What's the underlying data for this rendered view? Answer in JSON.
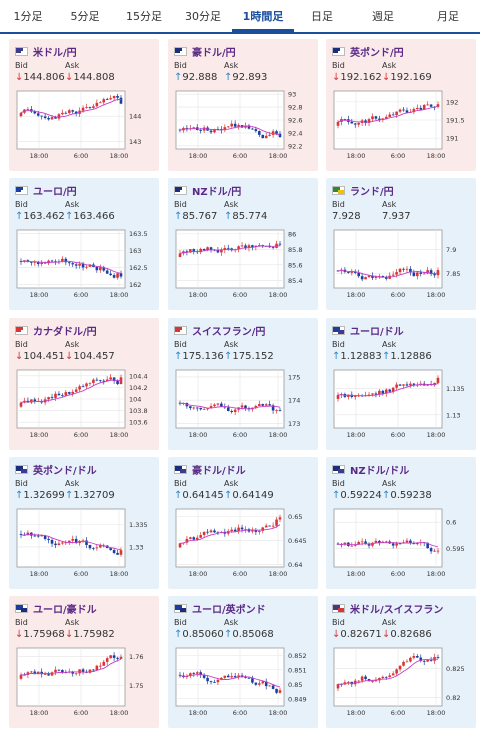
{
  "tabs": [
    {
      "label": "1分足",
      "active": false
    },
    {
      "label": "5分足",
      "active": false
    },
    {
      "label": "15分足",
      "active": false
    },
    {
      "label": "30分足",
      "active": false
    },
    {
      "label": "1時間足",
      "active": true
    },
    {
      "label": "日足",
      "active": false
    },
    {
      "label": "週足",
      "active": false
    },
    {
      "label": "月足",
      "active": false
    }
  ],
  "labels": {
    "bid": "Bid",
    "ask": "Ask"
  },
  "colors": {
    "up": "#2a86c8",
    "down": "#d83636",
    "candle_up": "#d83636",
    "candle_down": "#1a3fa0",
    "ma": "#c63fc6",
    "pink_bg": "#fbeaea",
    "blue_bg": "#e6f1fa",
    "pair_name": "#5b2a86"
  },
  "cards": [
    {
      "pair": "米ドル/円",
      "flag": [
        "#3c3b8e",
        "#ffffff"
      ],
      "bg": "pink",
      "bid_dir": "down",
      "bid": "144.806",
      "ask_dir": "down",
      "ask": "144.808",
      "chart": {
        "x_ticks": [
          "18:00",
          "6:00",
          "18:00"
        ],
        "y_ticks": [
          "144",
          "143"
        ],
        "y_range": [
          142.7,
          145.0
        ]
      }
    },
    {
      "pair": "豪ドル/円",
      "flag": [
        "#1a2e7a",
        "#ffffff"
      ],
      "bg": "pink",
      "bid_dir": "up",
      "bid": "92.888",
      "ask_dir": "up",
      "ask": "92.893",
      "chart": {
        "x_ticks": [
          "18:00",
          "6:00",
          "18:00"
        ],
        "y_ticks": [
          "93",
          "92.8",
          "92.6",
          "92.4",
          "92.2"
        ],
        "y_range": [
          92.15,
          93.05
        ]
      }
    },
    {
      "pair": "英ポンド/円",
      "flag": [
        "#1a2e7a",
        "#ffffff"
      ],
      "bg": "pink",
      "bid_dir": "down",
      "bid": "192.162",
      "ask_dir": "down",
      "ask": "192.169",
      "chart": {
        "x_ticks": [
          "18:00",
          "6:00",
          "18:00"
        ],
        "y_ticks": [
          "192",
          "191.5",
          "191"
        ],
        "y_range": [
          190.7,
          192.3
        ]
      }
    },
    {
      "pair": "ユーロ/円",
      "flag": [
        "#1a3fa0",
        "#ffffff"
      ],
      "bg": "blue",
      "bid_dir": "up",
      "bid": "163.462",
      "ask_dir": "up",
      "ask": "163.466",
      "chart": {
        "x_ticks": [
          "18:00",
          "6:00",
          "18:00"
        ],
        "y_ticks": [
          "163.5",
          "163",
          "162.5",
          "162"
        ],
        "y_range": [
          161.9,
          163.6
        ]
      }
    },
    {
      "pair": "NZドル/円",
      "flag": [
        "#1a2e7a",
        "#ffffff"
      ],
      "bg": "blue",
      "bid_dir": "up",
      "bid": "85.767",
      "ask_dir": "up",
      "ask": "85.774",
      "chart": {
        "x_ticks": [
          "18:00",
          "6:00",
          "18:00"
        ],
        "y_ticks": [
          "86",
          "85.8",
          "85.6",
          "85.4"
        ],
        "y_range": [
          85.3,
          86.05
        ]
      }
    },
    {
      "pair": "ランド/円",
      "flag": [
        "#2a8a3a",
        "#f2c200"
      ],
      "bg": "blue",
      "bid_dir": "none",
      "bid": "7.928",
      "ask_dir": "none",
      "ask": "7.937",
      "chart": {
        "x_ticks": [
          "18:00",
          "6:00",
          "18:00"
        ],
        "y_ticks": [
          "7.9",
          "7.85"
        ],
        "y_range": [
          7.82,
          7.94
        ]
      }
    },
    {
      "pair": "カナダドル/円",
      "flag": [
        "#d83636",
        "#ffffff"
      ],
      "bg": "pink",
      "bid_dir": "down",
      "bid": "104.451",
      "ask_dir": "down",
      "ask": "104.457",
      "chart": {
        "x_ticks": [
          "18:00",
          "6:00",
          "18:00"
        ],
        "y_ticks": [
          "104.4",
          "104.2",
          "104",
          "103.8",
          "103.6"
        ],
        "y_range": [
          103.5,
          104.5
        ]
      }
    },
    {
      "pair": "スイスフラン/円",
      "flag": [
        "#d83636",
        "#ffffff"
      ],
      "bg": "blue",
      "bid_dir": "up",
      "bid": "175.136",
      "ask_dir": "up",
      "ask": "175.152",
      "chart": {
        "x_ticks": [
          "18:00",
          "6:00",
          "18:00"
        ],
        "y_ticks": [
          "175",
          "174",
          "173"
        ],
        "y_range": [
          172.8,
          175.3
        ]
      }
    },
    {
      "pair": "ユーロ/ドル",
      "flag": [
        "#1a3fa0",
        "#3c3b8e"
      ],
      "bg": "blue",
      "bid_dir": "up",
      "bid": "1.12883",
      "ask_dir": "up",
      "ask": "1.12886",
      "chart": {
        "x_ticks": [
          "18:00",
          "6:00",
          "18:00"
        ],
        "y_ticks": [
          "1.135",
          "1.13"
        ],
        "y_range": [
          1.1275,
          1.1385
        ]
      }
    },
    {
      "pair": "英ポンド/ドル",
      "flag": [
        "#1a2e7a",
        "#3c3b8e"
      ],
      "bg": "blue",
      "bid_dir": "up",
      "bid": "1.32699",
      "ask_dir": "up",
      "ask": "1.32709",
      "chart": {
        "x_ticks": [
          "18:00",
          "6:00",
          "18:00"
        ],
        "y_ticks": [
          "1.335",
          "1.33"
        ],
        "y_range": [
          1.3255,
          1.3385
        ]
      }
    },
    {
      "pair": "豪ドル/ドル",
      "flag": [
        "#1a2e7a",
        "#3c3b8e"
      ],
      "bg": "blue",
      "bid_dir": "up",
      "bid": "0.64145",
      "ask_dir": "up",
      "ask": "0.64149",
      "chart": {
        "x_ticks": [
          "18:00",
          "6:00",
          "18:00"
        ],
        "y_ticks": [
          "0.65",
          "0.645",
          "0.64"
        ],
        "y_range": [
          0.6395,
          0.6515
        ]
      }
    },
    {
      "pair": "NZドル/ドル",
      "flag": [
        "#1a2e7a",
        "#3c3b8e"
      ],
      "bg": "blue",
      "bid_dir": "up",
      "bid": "0.59224",
      "ask_dir": "up",
      "ask": "0.59238",
      "chart": {
        "x_ticks": [
          "18:00",
          "6:00",
          "18:00"
        ],
        "y_ticks": [
          "0.6",
          "0.595"
        ],
        "y_range": [
          0.5915,
          0.6025
        ]
      }
    },
    {
      "pair": "ユーロ/豪ドル",
      "flag": [
        "#1a3fa0",
        "#1a2e7a"
      ],
      "bg": "pink",
      "bid_dir": "down",
      "bid": "1.75968",
      "ask_dir": "down",
      "ask": "1.75982",
      "chart": {
        "x_ticks": [
          "18:00",
          "6:00",
          "18:00"
        ],
        "y_ticks": [
          "1.76",
          "1.75"
        ],
        "y_range": [
          1.743,
          1.763
        ]
      }
    },
    {
      "pair": "ユーロ/英ポンド",
      "flag": [
        "#1a3fa0",
        "#1a2e7a"
      ],
      "bg": "blue",
      "bid_dir": "up",
      "bid": "0.85060",
      "ask_dir": "up",
      "ask": "0.85068",
      "chart": {
        "x_ticks": [
          "18:00",
          "6:00",
          "18:00"
        ],
        "y_ticks": [
          "0.852",
          "0.851",
          "0.85",
          "0.849"
        ],
        "y_range": [
          0.8485,
          0.8525
        ]
      }
    },
    {
      "pair": "米ドル/スイスフラン",
      "flag": [
        "#3c3b8e",
        "#d83636"
      ],
      "bg": "blue",
      "bid_dir": "down",
      "bid": "0.82671",
      "ask_dir": "down",
      "ask": "0.82686",
      "chart": {
        "x_ticks": [
          "18:00",
          "6:00",
          "18:00"
        ],
        "y_ticks": [
          "0.825",
          "0.82"
        ],
        "y_range": [
          0.8185,
          0.8285
        ]
      }
    }
  ]
}
